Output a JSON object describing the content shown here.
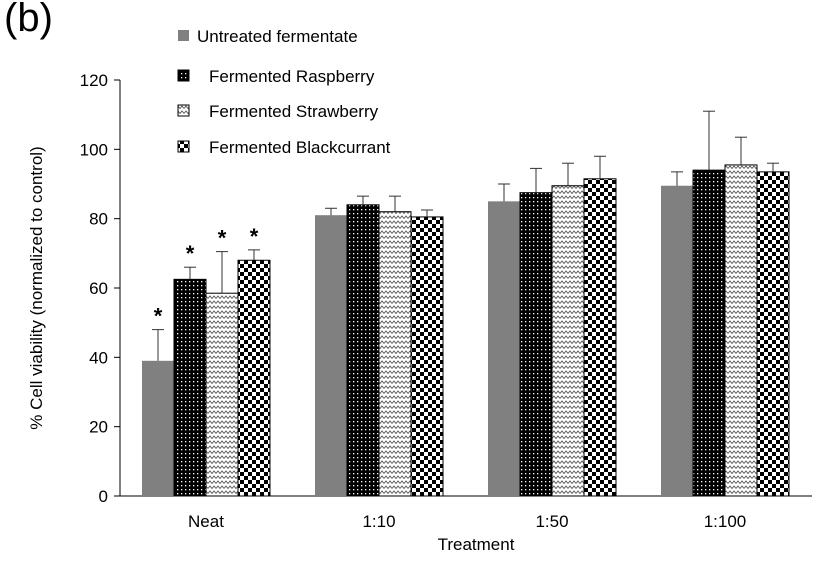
{
  "panel_label": "(b)",
  "chart_data": {
    "type": "bar",
    "title": "",
    "xlabel": "Treatment",
    "ylabel": "% Cell viability  (normalized to control)",
    "ylim": [
      0,
      120
    ],
    "yticks": [
      0,
      20,
      40,
      60,
      80,
      100,
      120
    ],
    "grid": false,
    "legend_position": "top-left",
    "categories": [
      "Neat",
      "1:10",
      "1:50",
      "1:100"
    ],
    "series": [
      {
        "name": "Untreated fermentate",
        "pattern": "solid",
        "color": "#808080",
        "values": [
          39,
          81,
          85,
          89.5
        ],
        "errors": [
          9,
          2,
          5,
          4
        ]
      },
      {
        "name": "Fermented Raspberry",
        "pattern": "dots",
        "color": "#000000",
        "values": [
          62.5,
          84,
          87.5,
          94
        ],
        "errors": [
          3.5,
          2.5,
          7,
          17
        ]
      },
      {
        "name": "Fermented Strawberry",
        "pattern": "zigzag",
        "color": "#000000",
        "values": [
          58.5,
          82,
          89.5,
          95.5
        ],
        "errors": [
          12,
          4.5,
          6.5,
          8
        ]
      },
      {
        "name": "Fermented Blackcurrant",
        "pattern": "checker",
        "color": "#000000",
        "values": [
          68,
          80.5,
          91.5,
          93.5
        ],
        "errors": [
          3,
          2,
          6.5,
          2.5
        ]
      }
    ],
    "annotations": [
      {
        "text": "*",
        "category": "Neat",
        "series": "Untreated fermentate"
      },
      {
        "text": "*",
        "category": "Neat",
        "series": "Fermented Raspberry"
      },
      {
        "text": "*",
        "category": "Neat",
        "series": "Fermented Strawberry"
      },
      {
        "text": "*",
        "category": "Neat",
        "series": "Fermented Blackcurrant"
      }
    ]
  }
}
